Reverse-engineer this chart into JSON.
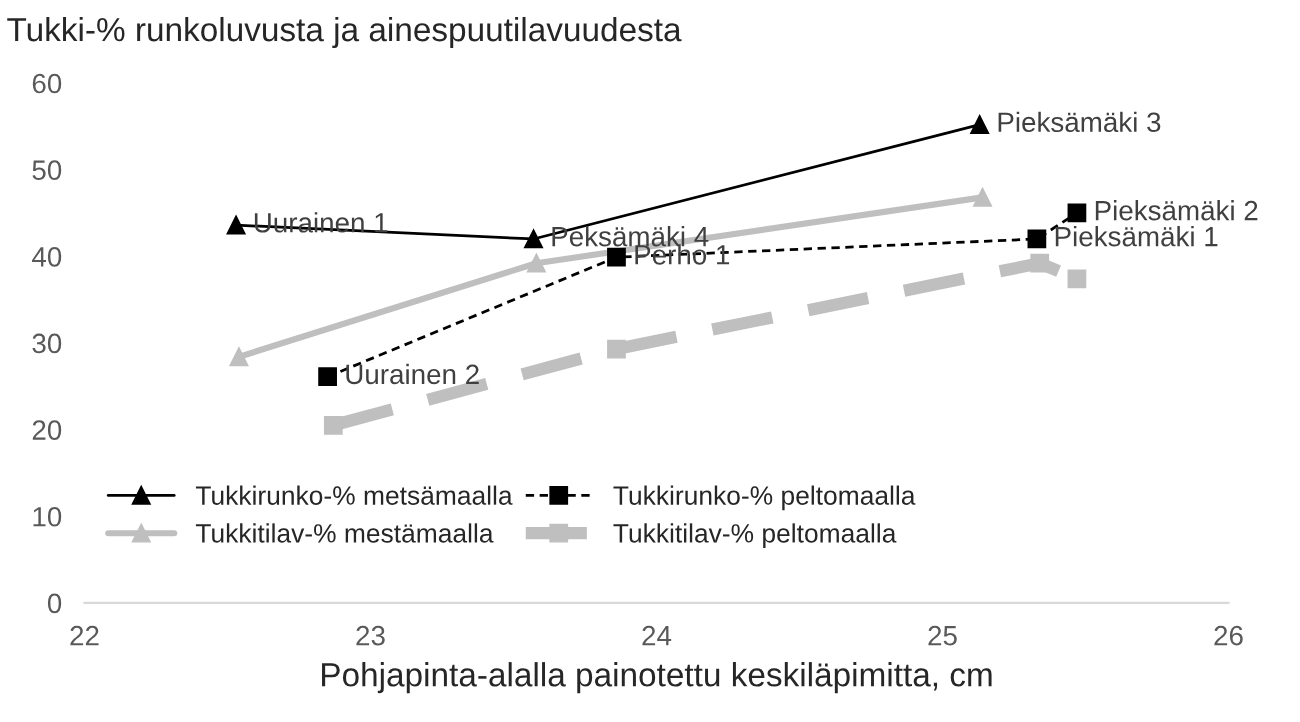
{
  "chart_data": {
    "type": "line",
    "title": "Tukki-% runkoluvusta ja ainespuutilavuudesta",
    "xlabel": "Pohjapinta-alalla painotettu keskiläpimitta, cm",
    "xlim": [
      22,
      26
    ],
    "xticks": [
      22,
      23,
      24,
      25,
      26
    ],
    "ylim": [
      0,
      60
    ],
    "yticks": [
      0,
      10,
      20,
      30,
      40,
      50,
      60
    ],
    "grid": false,
    "legend": "bottom left",
    "series": [
      {
        "name": "Tukkirunko-% metsämaalla",
        "color": "#000000",
        "marker": "triangle",
        "line_style": "solid",
        "x": [
          22.53,
          23.57,
          25.13
        ],
        "values": [
          43.6,
          42.0,
          55.2
        ]
      },
      {
        "name": "Tukkitilav-% mestämaalla",
        "color": "#bfbfbf",
        "marker": "triangle",
        "line_style": "solid",
        "x": [
          22.54,
          23.58,
          25.14
        ],
        "values": [
          28.4,
          39.2,
          46.8
        ]
      },
      {
        "name": "Tukkirunko-% peltomaalla",
        "color": "#000000",
        "marker": "square",
        "line_style": "dotted",
        "x": [
          22.85,
          23.86,
          25.33,
          25.47
        ],
        "values": [
          26.1,
          39.9,
          42.0,
          45.0
        ]
      },
      {
        "name": "Tukkitilav-% peltomaalla",
        "color": "#bfbfbf",
        "marker": "square",
        "line_style": "dashed",
        "x": [
          22.87,
          23.86,
          25.34,
          25.47
        ],
        "values": [
          20.5,
          29.3,
          39.2,
          37.4
        ]
      }
    ],
    "annotations": [
      {
        "text": "Uurainen 1",
        "x": 22.53,
        "y": 43.6
      },
      {
        "text": "Peksämäki 4",
        "x": 23.57,
        "y": 42.0
      },
      {
        "text": "Pieksämäki 3",
        "x": 25.13,
        "y": 55.2
      },
      {
        "text": "Uurainen 2",
        "x": 22.85,
        "y": 26.1
      },
      {
        "text": "Perho 1",
        "x": 23.86,
        "y": 39.9
      },
      {
        "text": "Pieksämäki 1",
        "x": 25.33,
        "y": 42.0
      },
      {
        "text": "Pieksämäki 2",
        "x": 25.47,
        "y": 45.0
      }
    ]
  }
}
